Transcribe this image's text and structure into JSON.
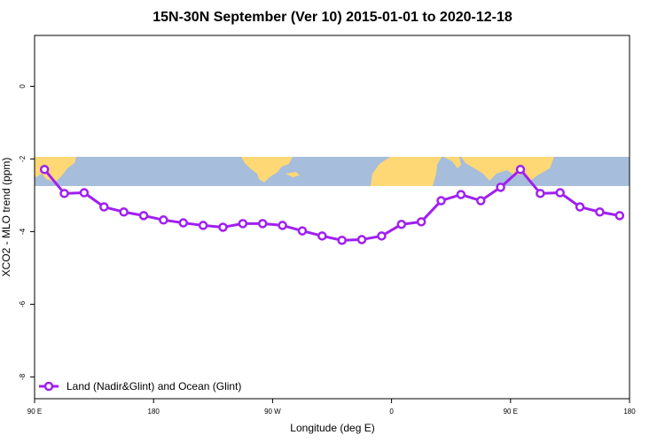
{
  "chart_data": {
    "type": "line",
    "title": "15N-30N September (Ver 10)   2015-01-01 to 2020-12-18",
    "x_label": "Longitude (deg E)",
    "y_label": "XCO2 - MLO trend (ppm)",
    "x": [
      97.5,
      112.5,
      127.5,
      142.5,
      157.5,
      172.5,
      187.5,
      202.5,
      217.5,
      232.5,
      247.5,
      262.5,
      277.5,
      292.5,
      307.5,
      322.5,
      337.5,
      352.5,
      367.5,
      382.5,
      397.5,
      412.5,
      427.5,
      442.5,
      457.5,
      472.5,
      487.5,
      502.5,
      517.5,
      532.5
    ],
    "series": [
      {
        "name": "Land (Nadir&Glint) and Ocean (Glint)",
        "color": "#a020f0",
        "values": [
          -2.29,
          -2.95,
          -2.93,
          -3.32,
          -3.46,
          -3.56,
          -3.68,
          -3.76,
          -3.83,
          -3.88,
          -3.78,
          -3.78,
          -3.83,
          -3.98,
          -4.12,
          -4.24,
          -4.22,
          -4.12,
          -3.8,
          -3.73,
          -3.15,
          -2.98,
          -3.15,
          -2.78,
          -2.29,
          -2.95,
          -2.93,
          -3.32,
          -3.46,
          -3.56
        ]
      }
    ],
    "xlim": [
      90,
      540
    ],
    "xticks": [
      {
        "value": 90,
        "label": "90 E"
      },
      180,
      {
        "value": 270,
        "label": "90 W"
      },
      {
        "value": 360,
        "label": "0"
      },
      {
        "value": 450,
        "label": "90 E"
      },
      {
        "value": 540,
        "label": "180"
      }
    ],
    "ylim": [
      -8.6,
      1.4
    ],
    "yticks": [
      0,
      -2,
      -4,
      -6,
      -8
    ],
    "legend": "bottom-left"
  }
}
